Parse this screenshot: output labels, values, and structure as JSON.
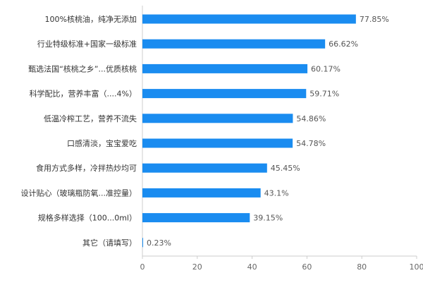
{
  "chart_data": {
    "type": "bar",
    "orientation": "horizontal",
    "title": "",
    "xlabel": "",
    "ylabel": "",
    "categories": [
      "100%核桃油，纯净无添加",
      "行业特级标准+国家一级标准",
      "甄选法国“核桃之乡”...优质核桃",
      "科学配比，营养丰富（....4%）",
      "低温冷榨工艺，营养不流失",
      "口感清淡，宝宝爱吃",
      "食用方式多样，冷拌热炒均可",
      "设计贴心（玻璃瓶防氧...准控量）",
      "规格多样选择（100...0ml）",
      "其它（请填写）"
    ],
    "values": [
      77.85,
      66.62,
      60.17,
      59.71,
      54.86,
      54.78,
      45.45,
      43.1,
      39.15,
      0.23
    ],
    "value_labels": [
      "77.85%",
      "66.62%",
      "60.17%",
      "59.71%",
      "54.86%",
      "54.78%",
      "45.45%",
      "43.1%",
      "39.15%",
      "0.23%"
    ],
    "xlim": [
      0,
      100
    ],
    "x_ticks": [
      0,
      20,
      40,
      60,
      80,
      100
    ],
    "grid": false,
    "legend": "none",
    "colors": {
      "bar": "#1a8cf0",
      "label_text": "#333333",
      "value_text": "#555555",
      "axis_line": "#cccccc",
      "tick_text": "#666666"
    }
  }
}
